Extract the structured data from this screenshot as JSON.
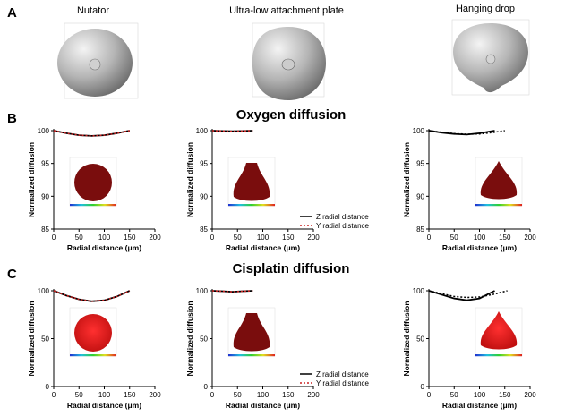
{
  "panels": {
    "a": "A",
    "b": "B",
    "c": "C"
  },
  "top_labels": [
    "Nutator",
    "Ultra-low attachment plate",
    "Hanging drop"
  ],
  "colors": {
    "spheroid_dark": "#7a0d0d",
    "spheroid_bright": "#d91a1a",
    "z_line": "#000000",
    "y_line": "#cc2222"
  },
  "chart_data": [
    {
      "type": "line",
      "title": "Oxygen diffusion",
      "xlabel": "Radial distance (μm)",
      "ylabel": "Normalized diffusion",
      "xlim": [
        0,
        200
      ],
      "ylim": [
        85,
        100
      ],
      "xticks": [
        "0",
        "50",
        "100",
        "150",
        "200"
      ],
      "yticks": [
        "85",
        "90",
        "95",
        "100"
      ],
      "legend": {
        "placement": "bottom-right",
        "z": "Z radial distance",
        "y": "Y radial distance"
      },
      "charts": [
        {
          "name": "Nutator",
          "series": [
            {
              "name": "Z radial distance",
              "x": [
                0,
                25,
                50,
                75,
                100,
                125,
                150
              ],
              "values": [
                100,
                99.6,
                99.3,
                99.2,
                99.3,
                99.6,
                100
              ]
            },
            {
              "name": "Y radial distance",
              "x": [
                0,
                25,
                50,
                75,
                100,
                125,
                150
              ],
              "values": [
                100,
                99.6,
                99.3,
                99.2,
                99.3,
                99.6,
                100
              ]
            }
          ]
        },
        {
          "name": "Ultra-low attachment plate",
          "series": [
            {
              "name": "Z radial distance",
              "x": [
                0,
                20,
                40,
                60,
                80
              ],
              "values": [
                100,
                99.95,
                99.9,
                99.95,
                100
              ]
            },
            {
              "name": "Y radial distance",
              "x": [
                0,
                20,
                40,
                60,
                80
              ],
              "values": [
                100,
                99.95,
                99.9,
                99.95,
                100
              ]
            }
          ]
        },
        {
          "name": "Hanging drop",
          "series": [
            {
              "name": "Z radial distance",
              "x": [
                0,
                25,
                50,
                75,
                100,
                130
              ],
              "values": [
                100,
                99.7,
                99.5,
                99.4,
                99.6,
                100
              ]
            },
            {
              "name": "Y radial distance",
              "x": [
                0,
                25,
                50,
                75,
                100,
                125,
                150
              ],
              "values": [
                100,
                99.75,
                99.55,
                99.45,
                99.5,
                99.7,
                100
              ]
            }
          ]
        }
      ]
    },
    {
      "type": "line",
      "title": "Cisplatin diffusion",
      "xlabel": "Radial distance (μm)",
      "ylabel": "Normalized diffusion",
      "xlim": [
        0,
        200
      ],
      "ylim": [
        0,
        100
      ],
      "xticks": [
        "0",
        "50",
        "100",
        "150",
        "200"
      ],
      "yticks": [
        "0",
        "50",
        "100"
      ],
      "legend": {
        "placement": "bottom-right",
        "z": "Z radial distance",
        "y": "Y radial distance"
      },
      "charts": [
        {
          "name": "Nutator",
          "series": [
            {
              "name": "Z radial distance",
              "x": [
                0,
                25,
                50,
                75,
                100,
                125,
                150
              ],
              "values": [
                100,
                95,
                91,
                89,
                90,
                94,
                100
              ]
            },
            {
              "name": "Y radial distance",
              "x": [
                0,
                25,
                50,
                75,
                100,
                125,
                150
              ],
              "values": [
                100,
                95,
                91,
                89,
                90,
                94,
                100
              ]
            }
          ]
        },
        {
          "name": "Ultra-low attachment plate",
          "series": [
            {
              "name": "Z radial distance",
              "x": [
                0,
                20,
                40,
                60,
                80
              ],
              "values": [
                100,
                99.5,
                99,
                99.5,
                100
              ]
            },
            {
              "name": "Y radial distance",
              "x": [
                0,
                20,
                40,
                60,
                80
              ],
              "values": [
                100,
                99.5,
                99,
                99.5,
                100
              ]
            }
          ]
        },
        {
          "name": "Hanging drop",
          "series": [
            {
              "name": "Z radial distance",
              "x": [
                0,
                25,
                50,
                75,
                100,
                130
              ],
              "values": [
                100,
                96,
                92,
                90,
                92,
                100
              ]
            },
            {
              "name": "Y radial distance",
              "x": [
                0,
                25,
                50,
                75,
                100,
                125,
                155
              ],
              "values": [
                100,
                97,
                94,
                93,
                93.5,
                96,
                100
              ]
            }
          ]
        }
      ]
    }
  ]
}
